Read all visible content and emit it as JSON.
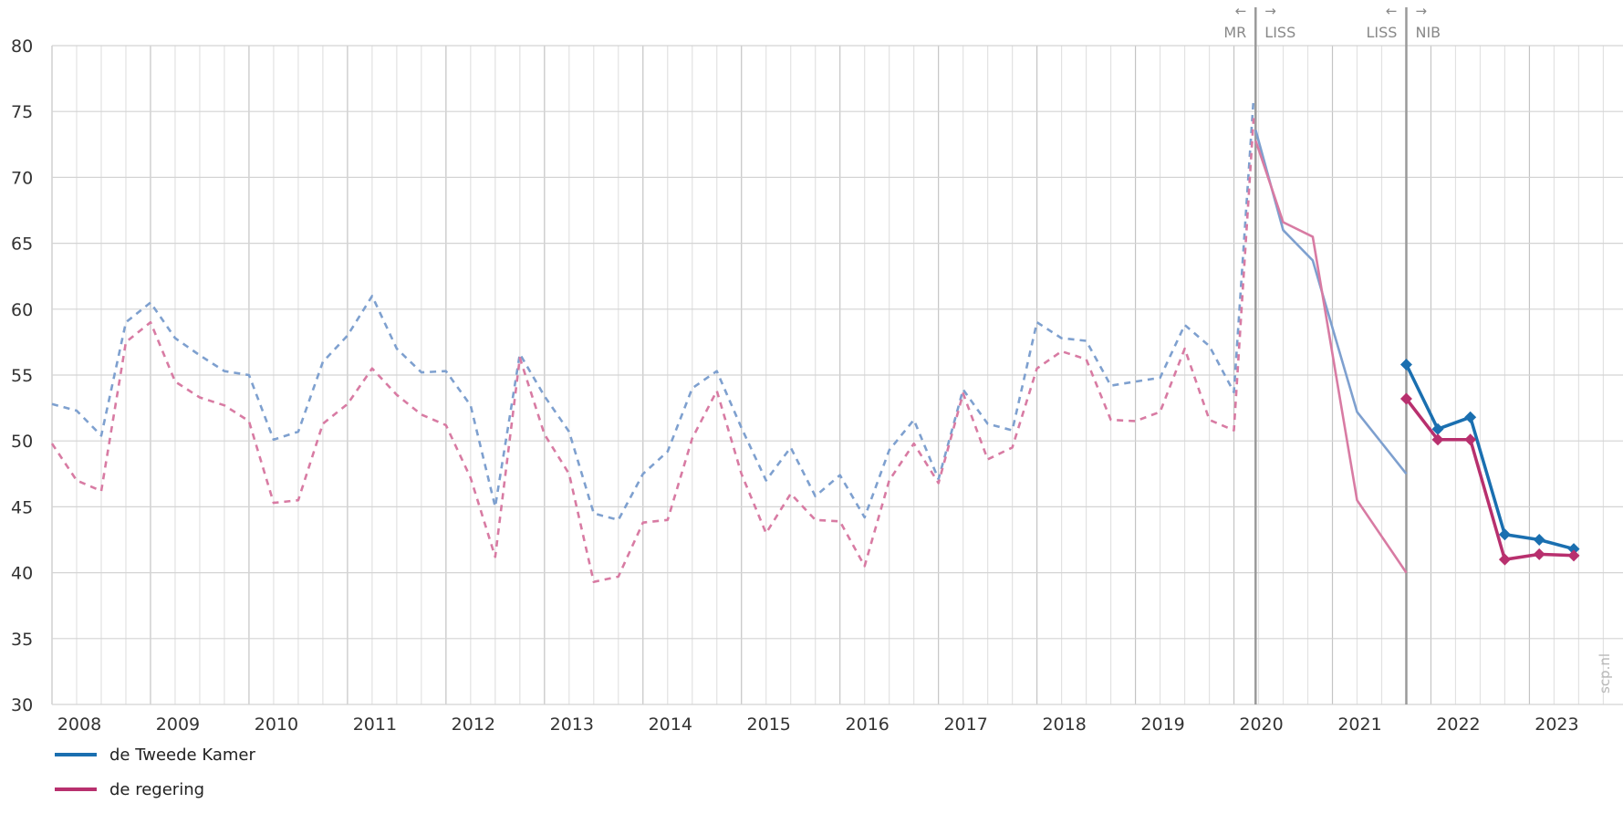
{
  "chart_data": {
    "type": "line",
    "title": "",
    "xlabel": "",
    "ylabel": "",
    "ylim": [
      30,
      80
    ],
    "yticks": [
      30,
      35,
      40,
      45,
      50,
      55,
      60,
      65,
      70,
      75,
      80
    ],
    "xlim": [
      2008.0,
      2023.95
    ],
    "x_tick_labels": [
      "2008",
      "2009",
      "2010",
      "2011",
      "2012",
      "2013",
      "2014",
      "2015",
      "2016",
      "2017",
      "2018",
      "2019",
      "2020",
      "2021",
      "2022",
      "2023"
    ],
    "grid": true,
    "legend_placement": "bottom-left",
    "source_labels": [
      "MR",
      "LISS",
      "LISS",
      "NIB"
    ],
    "watermark": "scp.nl",
    "colors": {
      "tweede_kamer": "#1a6fb0",
      "tweede_kamer_light": "#7ea0cf",
      "regering": "#b8306e",
      "regering_light": "#d87ba3",
      "grid": "#d4d4d4",
      "divider": "#9a9a9a"
    },
    "series": [
      {
        "name": "de Tweede Kamer",
        "segments": [
          {
            "source": "MR",
            "style": "dashed",
            "points": [
              [
                2008.0,
                52.8
              ],
              [
                2008.25,
                52.3
              ],
              [
                2008.5,
                50.4
              ],
              [
                2008.75,
                59.0
              ],
              [
                2009.0,
                60.5
              ],
              [
                2009.25,
                57.8
              ],
              [
                2009.5,
                56.5
              ],
              [
                2009.75,
                55.3
              ],
              [
                2010.0,
                55.0
              ],
              [
                2010.25,
                50.1
              ],
              [
                2010.5,
                50.7
              ],
              [
                2010.75,
                56.0
              ],
              [
                2011.0,
                58.0
              ],
              [
                2011.25,
                61.0
              ],
              [
                2011.5,
                57.0
              ],
              [
                2011.75,
                55.2
              ],
              [
                2012.0,
                55.3
              ],
              [
                2012.25,
                52.7
              ],
              [
                2012.5,
                45.0
              ],
              [
                2012.75,
                56.6
              ],
              [
                2013.0,
                53.4
              ],
              [
                2013.25,
                50.7
              ],
              [
                2013.5,
                44.5
              ],
              [
                2013.75,
                44.0
              ],
              [
                2014.0,
                47.5
              ],
              [
                2014.25,
                49.2
              ],
              [
                2014.5,
                54.0
              ],
              [
                2014.75,
                55.3
              ],
              [
                2015.0,
                51.0
              ],
              [
                2015.25,
                47.0
              ],
              [
                2015.5,
                49.5
              ],
              [
                2015.75,
                45.8
              ],
              [
                2016.0,
                47.4
              ],
              [
                2016.25,
                44.2
              ],
              [
                2016.5,
                49.3
              ],
              [
                2016.75,
                51.6
              ],
              [
                2017.0,
                47.1
              ],
              [
                2017.25,
                53.9
              ],
              [
                2017.5,
                51.3
              ],
              [
                2017.75,
                50.8
              ],
              [
                2018.0,
                59.0
              ],
              [
                2018.25,
                57.8
              ],
              [
                2018.5,
                57.6
              ],
              [
                2018.75,
                54.2
              ],
              [
                2019.0,
                54.5
              ],
              [
                2019.25,
                54.8
              ],
              [
                2019.5,
                58.8
              ],
              [
                2019.75,
                57.2
              ],
              [
                2020.0,
                53.7
              ],
              [
                2020.2,
                76.0
              ]
            ]
          },
          {
            "source": "LISS",
            "style": "solid-light",
            "points": [
              [
                2020.22,
                73.6
              ],
              [
                2020.5,
                66.0
              ],
              [
                2020.8,
                63.7
              ],
              [
                2021.25,
                52.2
              ],
              [
                2021.75,
                47.5
              ]
            ]
          },
          {
            "source": "NIB",
            "style": "solid-markers",
            "points": [
              [
                2021.75,
                55.8
              ],
              [
                2022.07,
                50.9
              ],
              [
                2022.4,
                51.8
              ],
              [
                2022.75,
                42.9
              ],
              [
                2023.1,
                42.5
              ],
              [
                2023.45,
                41.8
              ]
            ]
          }
        ]
      },
      {
        "name": "de regering",
        "segments": [
          {
            "source": "MR",
            "style": "dashed",
            "points": [
              [
                2008.0,
                49.8
              ],
              [
                2008.25,
                47.0
              ],
              [
                2008.5,
                46.2
              ],
              [
                2008.75,
                57.5
              ],
              [
                2009.0,
                59.0
              ],
              [
                2009.25,
                54.5
              ],
              [
                2009.5,
                53.3
              ],
              [
                2009.75,
                52.7
              ],
              [
                2010.0,
                51.5
              ],
              [
                2010.25,
                45.3
              ],
              [
                2010.5,
                45.5
              ],
              [
                2010.75,
                51.3
              ],
              [
                2011.0,
                52.8
              ],
              [
                2011.25,
                55.5
              ],
              [
                2011.5,
                53.5
              ],
              [
                2011.75,
                52.0
              ],
              [
                2012.0,
                51.2
              ],
              [
                2012.25,
                47.2
              ],
              [
                2012.5,
                41.2
              ],
              [
                2012.75,
                56.3
              ],
              [
                2013.0,
                50.5
              ],
              [
                2013.25,
                47.5
              ],
              [
                2013.5,
                39.3
              ],
              [
                2013.75,
                39.7
              ],
              [
                2014.0,
                43.8
              ],
              [
                2014.25,
                44.0
              ],
              [
                2014.5,
                50.2
              ],
              [
                2014.75,
                53.8
              ],
              [
                2015.0,
                47.5
              ],
              [
                2015.25,
                43.0
              ],
              [
                2015.5,
                46.0
              ],
              [
                2015.75,
                44.0
              ],
              [
                2016.0,
                43.9
              ],
              [
                2016.25,
                40.5
              ],
              [
                2016.5,
                47.0
              ],
              [
                2016.75,
                49.8
              ],
              [
                2017.0,
                46.8
              ],
              [
                2017.25,
                53.6
              ],
              [
                2017.5,
                48.6
              ],
              [
                2017.75,
                49.5
              ],
              [
                2018.0,
                55.5
              ],
              [
                2018.25,
                56.8
              ],
              [
                2018.5,
                56.2
              ],
              [
                2018.75,
                51.6
              ],
              [
                2019.0,
                51.5
              ],
              [
                2019.25,
                52.2
              ],
              [
                2019.5,
                57.0
              ],
              [
                2019.75,
                51.6
              ],
              [
                2020.0,
                50.8
              ],
              [
                2020.2,
                74.5
              ]
            ]
          },
          {
            "source": "LISS",
            "style": "solid-light",
            "points": [
              [
                2020.22,
                72.8
              ],
              [
                2020.5,
                66.6
              ],
              [
                2020.8,
                65.5
              ],
              [
                2021.25,
                45.5
              ],
              [
                2021.75,
                40.0
              ]
            ]
          },
          {
            "source": "NIB",
            "style": "solid-markers",
            "points": [
              [
                2021.75,
                53.2
              ],
              [
                2022.07,
                50.1
              ],
              [
                2022.4,
                50.1
              ],
              [
                2022.75,
                41.0
              ],
              [
                2023.1,
                41.4
              ],
              [
                2023.45,
                41.3
              ]
            ]
          }
        ]
      }
    ],
    "source_breaks": [
      2020.22,
      2021.75
    ]
  }
}
